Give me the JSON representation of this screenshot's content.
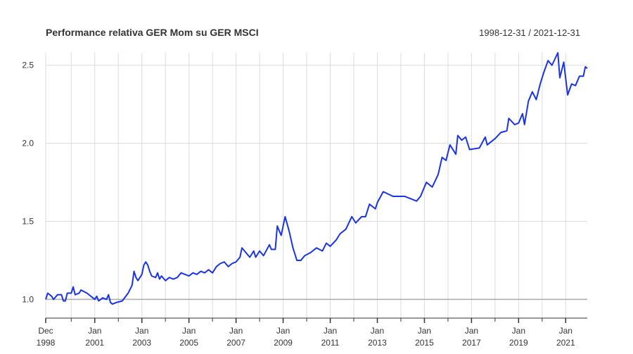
{
  "chart_data": {
    "type": "line",
    "title": "Performance relativa GER Mom su GER MSCI",
    "subtitle": "1998-12-31 / 2021-12-31",
    "x": [
      "1998-12",
      "1999-01",
      "1999-03",
      "1999-04",
      "1999-06",
      "1999-08",
      "1999-09",
      "1999-10",
      "1999-11",
      "2000-01",
      "2000-02",
      "2000-03",
      "2000-05",
      "2000-06",
      "2000-09",
      "2000-11",
      "2001-01",
      "2001-02",
      "2001-03",
      "2001-05",
      "2001-07",
      "2001-08",
      "2001-09",
      "2001-10",
      "2001-12",
      "2002-03",
      "2002-06",
      "2002-08",
      "2002-09",
      "2002-10",
      "2002-11",
      "2003-01",
      "2003-02",
      "2003-03",
      "2003-04",
      "2003-05",
      "2003-06",
      "2003-08",
      "2003-09",
      "2003-10",
      "2003-11",
      "2004-01",
      "2004-03",
      "2004-05",
      "2004-07",
      "2004-09",
      "2004-11",
      "2005-01",
      "2005-03",
      "2005-05",
      "2005-07",
      "2005-09",
      "2005-11",
      "2006-01",
      "2006-03",
      "2006-05",
      "2006-07",
      "2006-09",
      "2006-11",
      "2007-01",
      "2007-03",
      "2007-04",
      "2007-06",
      "2007-08",
      "2007-10",
      "2007-11",
      "2008-01",
      "2008-03",
      "2008-06",
      "2008-07",
      "2008-09",
      "2008-10",
      "2008-12",
      "2009-02",
      "2009-04",
      "2009-06",
      "2009-08",
      "2009-10",
      "2009-12",
      "2010-03",
      "2010-06",
      "2010-09",
      "2010-11",
      "2011-01",
      "2011-04",
      "2011-06",
      "2011-09",
      "2011-12",
      "2012-02",
      "2012-05",
      "2012-07",
      "2012-09",
      "2012-12",
      "2013-01",
      "2013-04",
      "2013-09",
      "2014-03",
      "2014-09",
      "2014-11",
      "2015-02",
      "2015-05",
      "2015-08",
      "2015-10",
      "2015-12",
      "2016-02",
      "2016-05",
      "2016-06",
      "2016-08",
      "2016-10",
      "2016-12",
      "2017-05",
      "2017-08",
      "2017-09",
      "2018-01",
      "2018-04",
      "2018-07",
      "2018-08",
      "2018-11",
      "2019-01",
      "2019-03",
      "2019-04",
      "2019-06",
      "2019-08",
      "2019-10",
      "2019-12",
      "2020-02",
      "2020-04",
      "2020-06",
      "2020-09",
      "2020-10",
      "2020-12",
      "2021-02",
      "2021-04",
      "2021-06",
      "2021-08",
      "2021-10",
      "2021-11",
      "2021-12"
    ],
    "series": [
      {
        "color": "#1a33e6",
        "values": [
          1.0,
          1.04,
          1.02,
          1.0,
          1.03,
          1.03,
          0.99,
          0.99,
          1.04,
          1.04,
          1.08,
          1.03,
          1.04,
          1.06,
          1.04,
          1.02,
          1.0,
          1.02,
          0.99,
          1.01,
          1.0,
          1.03,
          0.98,
          0.97,
          0.98,
          0.99,
          1.04,
          1.09,
          1.18,
          1.14,
          1.12,
          1.16,
          1.22,
          1.24,
          1.22,
          1.18,
          1.15,
          1.14,
          1.17,
          1.13,
          1.15,
          1.12,
          1.14,
          1.13,
          1.14,
          1.17,
          1.16,
          1.15,
          1.17,
          1.16,
          1.18,
          1.17,
          1.19,
          1.17,
          1.21,
          1.23,
          1.24,
          1.21,
          1.23,
          1.24,
          1.27,
          1.33,
          1.3,
          1.27,
          1.31,
          1.27,
          1.31,
          1.28,
          1.35,
          1.32,
          1.32,
          1.47,
          1.41,
          1.53,
          1.44,
          1.33,
          1.25,
          1.25,
          1.28,
          1.3,
          1.33,
          1.31,
          1.36,
          1.34,
          1.38,
          1.42,
          1.45,
          1.53,
          1.49,
          1.53,
          1.53,
          1.61,
          1.58,
          1.62,
          1.69,
          1.66,
          1.66,
          1.63,
          1.66,
          1.75,
          1.72,
          1.8,
          1.91,
          1.89,
          1.99,
          1.93,
          2.05,
          2.02,
          2.04,
          1.96,
          1.97,
          2.04,
          1.99,
          2.03,
          2.07,
          2.08,
          2.16,
          2.12,
          2.13,
          2.19,
          2.12,
          2.27,
          2.33,
          2.28,
          2.38,
          2.46,
          2.53,
          2.5,
          2.58,
          2.42,
          2.52,
          2.31,
          2.38,
          2.37,
          2.43,
          2.43,
          2.49,
          2.48
        ]
      }
    ],
    "xlim": [
      "1998-12",
      "2021-12"
    ],
    "xticks": [
      {
        "value": "1998-12",
        "label": [
          "Dec",
          "1998"
        ]
      },
      {
        "value": "2001-01",
        "label": [
          "Jan",
          "2001"
        ]
      },
      {
        "value": "2003-01",
        "label": [
          "Jan",
          "2003"
        ]
      },
      {
        "value": "2005-01",
        "label": [
          "Jan",
          "2005"
        ]
      },
      {
        "value": "2007-01",
        "label": [
          "Jan",
          "2007"
        ]
      },
      {
        "value": "2009-01",
        "label": [
          "Jan",
          "2009"
        ]
      },
      {
        "value": "2011-01",
        "label": [
          "Jan",
          "2011"
        ]
      },
      {
        "value": "2013-01",
        "label": [
          "Jan",
          "2013"
        ]
      },
      {
        "value": "2015-01",
        "label": [
          "Jan",
          "2015"
        ]
      },
      {
        "value": "2017-01",
        "label": [
          "Jan",
          "2017"
        ]
      },
      {
        "value": "2019-01",
        "label": [
          "Jan",
          "2019"
        ]
      },
      {
        "value": "2021-01",
        "label": [
          "Jan",
          "2021"
        ]
      }
    ],
    "xgrid": [
      "1998-12",
      "2000-01",
      "2001-01",
      "2002-01",
      "2003-01",
      "2004-01",
      "2005-01",
      "2006-01",
      "2007-01",
      "2008-01",
      "2009-01",
      "2010-01",
      "2011-01",
      "2012-01",
      "2013-01",
      "2014-01",
      "2015-01",
      "2016-01",
      "2017-01",
      "2018-01",
      "2019-01",
      "2020-01",
      "2021-01"
    ],
    "ylim": [
      0.88,
      2.58
    ],
    "yticks": [
      {
        "value": 1,
        "label": "1.0"
      },
      {
        "value": 1.5,
        "label": "1.5"
      },
      {
        "value": 2,
        "label": "2.0"
      },
      {
        "value": 2.5,
        "label": "2.5"
      }
    ],
    "reference_line": 1,
    "grid": true
  }
}
